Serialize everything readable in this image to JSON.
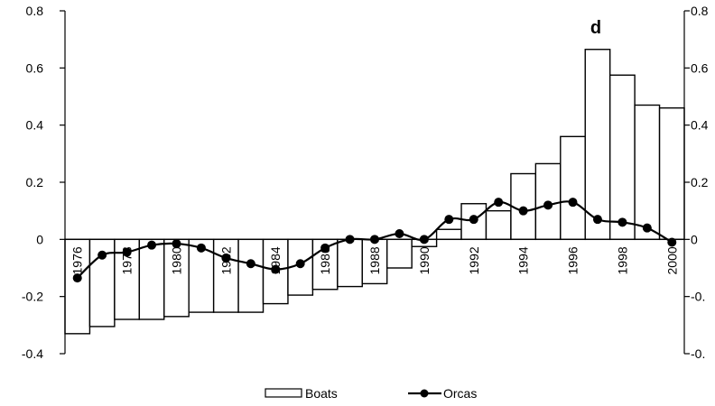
{
  "chart_data": {
    "type": "bar",
    "panel_label": "d",
    "x": [
      1976,
      1977,
      1978,
      1979,
      1980,
      1981,
      1982,
      1983,
      1984,
      1985,
      1986,
      1987,
      1988,
      1989,
      1990,
      1991,
      1992,
      1993,
      1994,
      1995,
      1996,
      1997,
      1998,
      1999,
      2000
    ],
    "x_tick_labels": [
      "1976",
      "1978",
      "1980",
      "1982",
      "1984",
      "1986",
      "1988",
      "1990",
      "1992",
      "1994",
      "1996",
      "1998",
      "2000"
    ],
    "x_tick_values": [
      1976,
      1978,
      1980,
      1982,
      1984,
      1986,
      1988,
      1990,
      1992,
      1994,
      1996,
      1998,
      2000
    ],
    "series": [
      {
        "name": "Boats",
        "type": "bar",
        "values": [
          -0.33,
          -0.305,
          -0.28,
          -0.28,
          -0.27,
          -0.255,
          -0.255,
          -0.255,
          -0.225,
          -0.195,
          -0.175,
          -0.165,
          -0.155,
          -0.1,
          -0.025,
          0.035,
          0.125,
          0.1,
          0.23,
          0.265,
          0.36,
          0.665,
          0.575,
          0.47,
          0.46
        ]
      },
      {
        "name": "Orcas",
        "type": "line",
        "values": [
          -0.135,
          -0.055,
          -0.045,
          -0.02,
          -0.015,
          -0.03,
          -0.065,
          -0.085,
          -0.105,
          -0.085,
          -0.03,
          0.0,
          0.0,
          0.02,
          0.0,
          0.07,
          0.07,
          0.13,
          0.1,
          0.12,
          0.13,
          0.07,
          0.06,
          0.04,
          -0.01
        ]
      }
    ],
    "y_left": {
      "range": [
        -0.4,
        0.8
      ],
      "ticks": [
        -0.4,
        -0.2,
        0,
        0.2,
        0.4,
        0.6,
        0.8
      ],
      "tick_labels": [
        "-0.4",
        "-0.2",
        "0",
        "0.2",
        "0.4",
        "0.6",
        "0.8"
      ]
    },
    "y_right": {
      "range": [
        -0.4,
        0.8
      ],
      "ticks": [
        -0.4,
        -0.2,
        0,
        0.2,
        0.4,
        0.6,
        0.8
      ],
      "tick_labels": [
        "-0.",
        "-0.",
        "0",
        "0.2",
        "0.4",
        "0.6",
        "0.8"
      ]
    },
    "grid": false,
    "legend": {
      "position": "bottom-center",
      "entries": [
        "Boats",
        "Orcas"
      ]
    },
    "colors": {
      "bar_fill": "#ffffff",
      "bar_stroke": "#000000",
      "line": "#000000",
      "marker": "#000000"
    }
  }
}
